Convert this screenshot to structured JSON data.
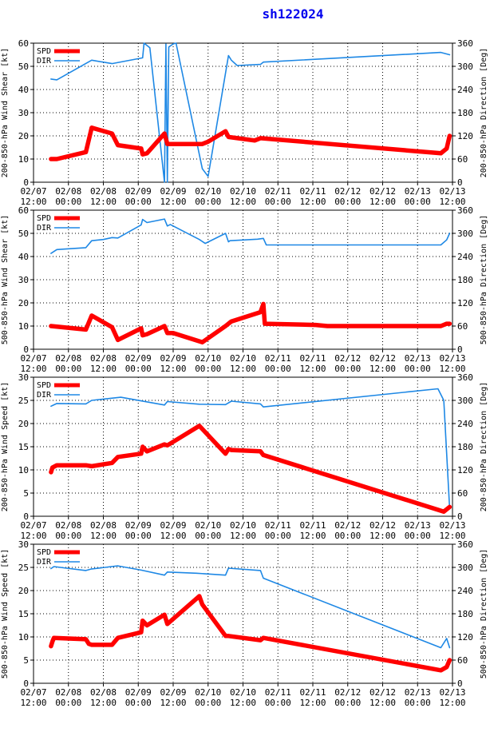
{
  "title": "sh122024",
  "chart_data": [
    {
      "type": "line",
      "ylabel": "200-850-hPa Wind Shear [kt]",
      "y2label": "200-850-hPa Direction [Deg]",
      "ylim": [
        0,
        60
      ],
      "yticks": [
        0,
        10,
        20,
        30,
        40,
        50,
        60
      ],
      "y2lim": [
        0,
        360
      ],
      "y2ticks": [
        0,
        60,
        120,
        180,
        240,
        300,
        360
      ],
      "legend": [
        "SPD",
        "DIR"
      ],
      "x_ticks": [
        "02/07 12:00",
        "02/08 00:00",
        "02/08 12:00",
        "02/09 00:00",
        "02/09 12:00",
        "02/10 00:00",
        "02/10 12:00",
        "02/11 00:00",
        "02/11 12:00",
        "02/12 00:00",
        "02/12 12:00",
        "02/13 00:00",
        "02/13 12:00"
      ],
      "xlim_hours": [
        0,
        144
      ],
      "series": [
        {
          "name": "SPD",
          "color": "#ff0000",
          "axis": "left",
          "points": [
            [
              6,
              10
            ],
            [
              8,
              10
            ],
            [
              18,
              13
            ],
            [
              20,
              23.5
            ],
            [
              27,
              21
            ],
            [
              29,
              16
            ],
            [
              37,
              14.5
            ],
            [
              37.5,
              12
            ],
            [
              39,
              12.5
            ],
            [
              45,
              21
            ],
            [
              46,
              16.5
            ],
            [
              58,
              16.5
            ],
            [
              60,
              17.5
            ],
            [
              66,
              22
            ],
            [
              67,
              19.5
            ],
            [
              76,
              18
            ],
            [
              78,
              19
            ],
            [
              140,
              12.5
            ],
            [
              142,
              14.5
            ],
            [
              143,
              20
            ]
          ]
        },
        {
          "name": "DIR",
          "color": "#1e88e5",
          "axis": "right",
          "points": [
            [
              6,
              267
            ],
            [
              8,
              265
            ],
            [
              20,
              316
            ],
            [
              27,
              307
            ],
            [
              37.5,
              322
            ],
            [
              38,
              360
            ],
            [
              40,
              348
            ],
            [
              45,
              0
            ],
            [
              45.5,
              358
            ],
            [
              46,
              0
            ],
            [
              46.5,
              350
            ],
            [
              48,
              358
            ],
            [
              49,
              360
            ],
            [
              58,
              35
            ],
            [
              60,
              15
            ],
            [
              67,
              328
            ],
            [
              68,
              316
            ],
            [
              70,
              302
            ],
            [
              78,
              305
            ],
            [
              79,
              311
            ],
            [
              140,
              336
            ],
            [
              143,
              330
            ]
          ]
        }
      ]
    },
    {
      "type": "line",
      "ylabel": "500-850-hPa Wind Shear [kt]",
      "y2label": "500-850-hPa Direction [Deg]",
      "ylim": [
        0,
        60
      ],
      "yticks": [
        0,
        10,
        20,
        30,
        40,
        50,
        60
      ],
      "y2lim": [
        0,
        360
      ],
      "y2ticks": [
        0,
        60,
        120,
        180,
        240,
        300,
        360
      ],
      "legend": [
        "SPD",
        "DIR"
      ],
      "x_ticks": [
        "02/07 12:00",
        "02/08 00:00",
        "02/08 12:00",
        "02/09 00:00",
        "02/09 12:00",
        "02/10 00:00",
        "02/10 12:00",
        "02/11 00:00",
        "02/11 12:00",
        "02/12 00:00",
        "02/12 12:00",
        "02/13 00:00",
        "02/13 12:00"
      ],
      "xlim_hours": [
        0,
        144
      ],
      "series": [
        {
          "name": "SPD",
          "color": "#ff0000",
          "axis": "left",
          "points": [
            [
              6,
              10
            ],
            [
              18,
              8.5
            ],
            [
              20,
              14.5
            ],
            [
              27,
              9.5
            ],
            [
              29,
              4
            ],
            [
              37,
              9
            ],
            [
              37.5,
              6
            ],
            [
              39,
              6.5
            ],
            [
              45,
              10
            ],
            [
              46,
              7
            ],
            [
              48,
              7
            ],
            [
              58,
              3
            ],
            [
              66,
              10
            ],
            [
              68,
              12
            ],
            [
              78,
              16
            ],
            [
              79,
              19.5
            ],
            [
              79.5,
              11
            ],
            [
              97,
              10.5
            ],
            [
              101,
              10
            ],
            [
              140,
              10
            ],
            [
              142,
              11
            ],
            [
              143,
              11
            ]
          ]
        },
        {
          "name": "DIR",
          "color": "#1e88e5",
          "axis": "right",
          "points": [
            [
              6,
              248
            ],
            [
              8,
              258
            ],
            [
              10,
              259
            ],
            [
              18,
              263
            ],
            [
              20,
              281
            ],
            [
              24,
              284
            ],
            [
              27,
              289
            ],
            [
              29,
              288
            ],
            [
              37,
              322
            ],
            [
              37.5,
              336
            ],
            [
              39,
              328
            ],
            [
              45,
              337
            ],
            [
              46,
              319
            ],
            [
              47,
              323
            ],
            [
              57,
              284
            ],
            [
              59,
              274
            ],
            [
              66,
              300
            ],
            [
              67,
              278
            ],
            [
              67.5,
              281
            ],
            [
              77,
              285
            ],
            [
              79,
              287
            ],
            [
              80,
              270
            ],
            [
              140,
              270
            ],
            [
              142,
              283
            ],
            [
              143,
              300
            ]
          ]
        }
      ]
    },
    {
      "type": "line",
      "ylabel": "200-850-hPa Wind Speed [kt]",
      "y2label": "200-850-hPa Direction [Deg]",
      "ylim": [
        0,
        30
      ],
      "yticks": [
        0,
        5,
        10,
        15,
        20,
        25,
        30
      ],
      "y2lim": [
        0,
        360
      ],
      "y2ticks": [
        0,
        60,
        120,
        180,
        240,
        300,
        360
      ],
      "legend": [
        "SPD",
        "DIR"
      ],
      "x_ticks": [
        "02/07 12:00",
        "02/08 00:00",
        "02/08 12:00",
        "02/09 00:00",
        "02/09 12:00",
        "02/10 00:00",
        "02/10 12:00",
        "02/11 00:00",
        "02/11 12:00",
        "02/12 00:00",
        "02/12 12:00",
        "02/13 00:00",
        "02/13 12:00"
      ],
      "xlim_hours": [
        0,
        144
      ],
      "series": [
        {
          "name": "SPD",
          "color": "#ff0000",
          "axis": "left",
          "points": [
            [
              6,
              9.5
            ],
            [
              6.5,
              10.5
            ],
            [
              8,
              11
            ],
            [
              18,
              11
            ],
            [
              20,
              10.8
            ],
            [
              27,
              11.5
            ],
            [
              29,
              12.8
            ],
            [
              37,
              13.5
            ],
            [
              37.5,
              15
            ],
            [
              39,
              14
            ],
            [
              45,
              15.5
            ],
            [
              46,
              15.3
            ],
            [
              57,
              19.5
            ],
            [
              66,
              13.5
            ],
            [
              67,
              14.5
            ],
            [
              68,
              14.3
            ],
            [
              78,
              14
            ],
            [
              79,
              13.2
            ],
            [
              141,
              1
            ],
            [
              143,
              2
            ]
          ]
        },
        {
          "name": "DIR",
          "color": "#1e88e5",
          "axis": "right",
          "points": [
            [
              6,
              285
            ],
            [
              8,
              292
            ],
            [
              18,
              291
            ],
            [
              20,
              300
            ],
            [
              30,
              308
            ],
            [
              45,
              288
            ],
            [
              46,
              297
            ],
            [
              57,
              290
            ],
            [
              66,
              289
            ],
            [
              68,
              298
            ],
            [
              78,
              291
            ],
            [
              79,
              283
            ],
            [
              139,
              330
            ],
            [
              141,
              300
            ],
            [
              143,
              20
            ]
          ]
        }
      ]
    },
    {
      "type": "line",
      "ylabel": "500-850-hPa Wind Speed [kt]",
      "y2label": "500-850-hPa Direction [Deg]",
      "ylim": [
        0,
        30
      ],
      "yticks": [
        0,
        5,
        10,
        15,
        20,
        25,
        30
      ],
      "y2lim": [
        0,
        360
      ],
      "y2ticks": [
        0,
        60,
        120,
        180,
        240,
        300,
        360
      ],
      "legend": [
        "SPD",
        "DIR"
      ],
      "x_ticks": [
        "02/07 12:00",
        "02/08 00:00",
        "02/08 12:00",
        "02/09 00:00",
        "02/09 12:00",
        "02/10 00:00",
        "02/10 12:00",
        "02/11 00:00",
        "02/11 12:00",
        "02/12 00:00",
        "02/12 12:00",
        "02/13 00:00",
        "02/13 12:00"
      ],
      "xlim_hours": [
        0,
        144
      ],
      "series": [
        {
          "name": "SPD",
          "color": "#ff0000",
          "axis": "left",
          "points": [
            [
              6,
              8
            ],
            [
              6.5,
              9
            ],
            [
              7,
              9.8
            ],
            [
              18,
              9.5
            ],
            [
              19,
              8.5
            ],
            [
              20,
              8.3
            ],
            [
              27,
              8.3
            ],
            [
              29,
              9.8
            ],
            [
              37,
              11
            ],
            [
              37.5,
              13.5
            ],
            [
              39,
              12.5
            ],
            [
              45,
              14.8
            ],
            [
              46,
              12.8
            ],
            [
              57,
              18.8
            ],
            [
              58,
              17
            ],
            [
              66,
              10.2
            ],
            [
              67,
              10.2
            ],
            [
              78,
              9.3
            ],
            [
              79,
              9.8
            ],
            [
              140,
              2.8
            ],
            [
              142,
              3.5
            ],
            [
              143,
              5
            ]
          ]
        },
        {
          "name": "DIR",
          "color": "#1e88e5",
          "axis": "right",
          "points": [
            [
              6,
              297
            ],
            [
              7,
              302
            ],
            [
              18,
              292
            ],
            [
              20,
              296
            ],
            [
              29,
              304
            ],
            [
              37,
              293
            ],
            [
              45,
              280
            ],
            [
              46,
              288
            ],
            [
              56,
              285
            ],
            [
              66,
              280
            ],
            [
              67,
              298
            ],
            [
              78,
              292
            ],
            [
              79,
              272
            ],
            [
              140,
              92
            ],
            [
              142,
              116
            ],
            [
              143,
              92
            ]
          ]
        }
      ]
    }
  ]
}
